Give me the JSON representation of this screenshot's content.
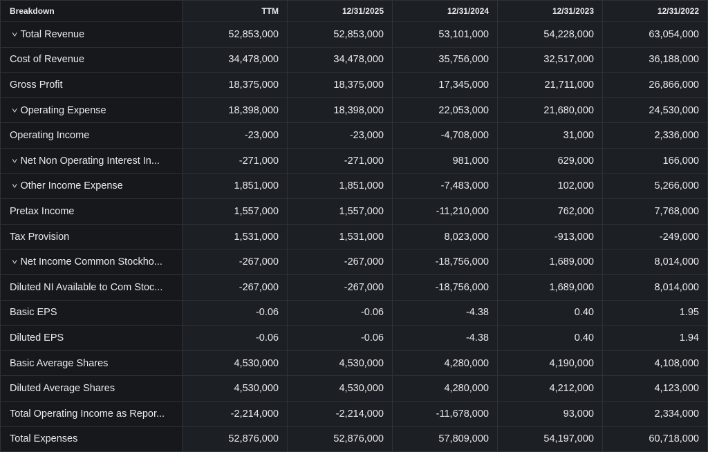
{
  "header": {
    "breakdown": "Breakdown",
    "columns": [
      "TTM",
      "12/31/2025",
      "12/31/2024",
      "12/31/2023",
      "12/31/2022"
    ]
  },
  "rows": [
    {
      "label": "Total Revenue",
      "expandable": true,
      "values": [
        "52,853,000",
        "52,853,000",
        "53,101,000",
        "54,228,000",
        "63,054,000"
      ]
    },
    {
      "label": "Cost of Revenue",
      "expandable": false,
      "values": [
        "34,478,000",
        "34,478,000",
        "35,756,000",
        "32,517,000",
        "36,188,000"
      ]
    },
    {
      "label": "Gross Profit",
      "expandable": false,
      "values": [
        "18,375,000",
        "18,375,000",
        "17,345,000",
        "21,711,000",
        "26,866,000"
      ]
    },
    {
      "label": "Operating Expense",
      "expandable": true,
      "values": [
        "18,398,000",
        "18,398,000",
        "22,053,000",
        "21,680,000",
        "24,530,000"
      ]
    },
    {
      "label": "Operating Income",
      "expandable": false,
      "values": [
        "-23,000",
        "-23,000",
        "-4,708,000",
        "31,000",
        "2,336,000"
      ]
    },
    {
      "label": "Net Non Operating Interest In...",
      "expandable": true,
      "values": [
        "-271,000",
        "-271,000",
        "981,000",
        "629,000",
        "166,000"
      ]
    },
    {
      "label": "Other Income Expense",
      "expandable": true,
      "values": [
        "1,851,000",
        "1,851,000",
        "-7,483,000",
        "102,000",
        "5,266,000"
      ]
    },
    {
      "label": "Pretax Income",
      "expandable": false,
      "values": [
        "1,557,000",
        "1,557,000",
        "-11,210,000",
        "762,000",
        "7,768,000"
      ]
    },
    {
      "label": "Tax Provision",
      "expandable": false,
      "values": [
        "1,531,000",
        "1,531,000",
        "8,023,000",
        "-913,000",
        "-249,000"
      ]
    },
    {
      "label": "Net Income Common Stockho...",
      "expandable": true,
      "values": [
        "-267,000",
        "-267,000",
        "-18,756,000",
        "1,689,000",
        "8,014,000"
      ]
    },
    {
      "label": "Diluted NI Available to Com Stoc...",
      "expandable": false,
      "values": [
        "-267,000",
        "-267,000",
        "-18,756,000",
        "1,689,000",
        "8,014,000"
      ]
    },
    {
      "label": "Basic EPS",
      "expandable": false,
      "values": [
        "-0.06",
        "-0.06",
        "-4.38",
        "0.40",
        "1.95"
      ]
    },
    {
      "label": "Diluted EPS",
      "expandable": false,
      "values": [
        "-0.06",
        "-0.06",
        "-4.38",
        "0.40",
        "1.94"
      ]
    },
    {
      "label": "Basic Average Shares",
      "expandable": false,
      "values": [
        "4,530,000",
        "4,530,000",
        "4,280,000",
        "4,190,000",
        "4,108,000"
      ]
    },
    {
      "label": "Diluted Average Shares",
      "expandable": false,
      "values": [
        "4,530,000",
        "4,530,000",
        "4,280,000",
        "4,212,000",
        "4,123,000"
      ]
    },
    {
      "label": "Total Operating Income as Repor...",
      "expandable": false,
      "values": [
        "-2,214,000",
        "-2,214,000",
        "-11,678,000",
        "93,000",
        "2,334,000"
      ]
    },
    {
      "label": "Total Expenses",
      "expandable": false,
      "values": [
        "52,876,000",
        "52,876,000",
        "57,809,000",
        "54,197,000",
        "60,718,000"
      ]
    }
  ]
}
